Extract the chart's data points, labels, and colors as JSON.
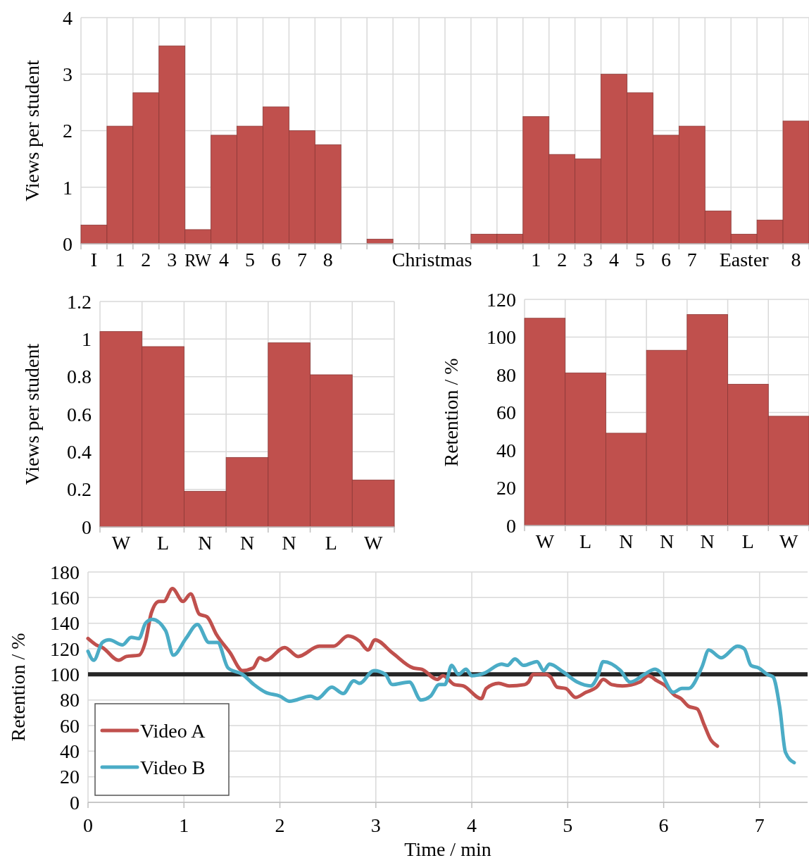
{
  "chart_data": [
    {
      "type": "bar",
      "ylabel": "Views per student",
      "categories": [
        "I",
        "1",
        "2",
        "3",
        "RW",
        "4",
        "5",
        "6",
        "7",
        "8",
        null,
        null,
        null,
        "Christmas",
        null,
        null,
        null,
        "1",
        "2",
        "3",
        "4",
        "5",
        "6",
        "7",
        null,
        "Easter",
        null,
        "8"
      ],
      "values": [
        0.33,
        2.08,
        2.67,
        3.5,
        0.25,
        1.92,
        2.08,
        2.42,
        2.0,
        1.75,
        0,
        0.08,
        0,
        0,
        0,
        0.17,
        0.17,
        2.25,
        1.58,
        1.5,
        3.0,
        2.67,
        1.92,
        2.08,
        0.58,
        0.17,
        0.42,
        2.17
      ],
      "color": "#c0504d",
      "ylim": [
        0,
        4
      ],
      "yticks": [
        0,
        1,
        2,
        3,
        4
      ],
      "grid": true
    },
    {
      "type": "bar",
      "ylabel": "Views per student",
      "categories": [
        "W",
        "L",
        "N",
        "N",
        "N",
        "L",
        "W"
      ],
      "values": [
        1.04,
        0.96,
        0.19,
        0.37,
        0.98,
        0.81,
        0.25
      ],
      "color": "#c0504d",
      "ylim": [
        0,
        1.2
      ],
      "yticks": [
        0,
        0.2,
        0.4,
        0.6,
        0.8,
        1,
        1.2
      ],
      "grid": true
    },
    {
      "type": "bar",
      "ylabel": "Retention / %",
      "categories": [
        "W",
        "L",
        "N",
        "N",
        "N",
        "L",
        "W"
      ],
      "values": [
        110,
        81,
        49,
        93,
        112,
        75,
        58
      ],
      "color": "#c0504d",
      "ylim": [
        0,
        120
      ],
      "yticks": [
        0,
        20,
        40,
        60,
        80,
        100,
        120
      ],
      "grid": true
    },
    {
      "type": "line",
      "xlabel": "Time / min",
      "ylabel": "Retention / %",
      "xlim": [
        0,
        7.5
      ],
      "xticks": [
        0,
        1,
        2,
        3,
        4,
        5,
        6,
        7
      ],
      "ylim": [
        0,
        180
      ],
      "yticks": [
        0,
        20,
        40,
        60,
        80,
        100,
        120,
        140,
        160,
        180
      ],
      "grid": true,
      "legend": "bottom left",
      "ref_lines": [
        {
          "axis": "y",
          "value": 100,
          "color": "#262626"
        }
      ],
      "series": [
        {
          "name": "Video A",
          "color": "#c0504d",
          "x": [
            0,
            0.086,
            0.15,
            0.32,
            0.4,
            0.53,
            0.6,
            0.66,
            0.74,
            0.79,
            0.88,
            0.99,
            1.07,
            1.16,
            1.24,
            1.34,
            1.48,
            1.61,
            1.72,
            1.79,
            1.85,
            2.05,
            2.19,
            2.41,
            2.56,
            2.71,
            2.83,
            2.92,
            2.99,
            3.17,
            3.39,
            3.48,
            3.64,
            3.7,
            3.82,
            3.91,
            4.1,
            4.15,
            4.28,
            4.39,
            4.55,
            4.59,
            4.64,
            4.77,
            4.82,
            4.89,
            4.98,
            5.08,
            5.19,
            5.3,
            5.37,
            5.46,
            5.57,
            5.75,
            5.84,
            5.93,
            6.02,
            6.11,
            6.18,
            6.26,
            6.35,
            6.42,
            6.49,
            6.56
          ],
          "values": [
            128,
            123,
            121,
            111,
            114,
            115,
            126,
            148,
            157,
            157,
            167,
            157,
            163,
            147,
            145,
            131,
            117,
            103,
            105,
            113,
            111,
            121,
            114,
            122,
            122,
            130,
            126,
            119,
            127,
            117,
            105,
            104,
            96,
            99,
            92,
            91,
            81,
            89,
            93,
            91,
            92,
            94,
            100,
            100,
            98,
            90,
            89,
            82,
            86,
            90,
            96,
            92,
            91,
            94,
            99,
            95,
            91,
            84,
            81,
            75,
            73,
            61,
            49,
            44
          ]
        },
        {
          "name": "Video B",
          "color": "#4bacc6",
          "x": [
            0,
            0.06,
            0.15,
            0.22,
            0.36,
            0.45,
            0.53,
            0.6,
            0.67,
            0.81,
            0.89,
            1.02,
            1.14,
            1.26,
            1.35,
            1.46,
            1.61,
            1.73,
            1.85,
            2.0,
            2.1,
            2.32,
            2.39,
            2.54,
            2.66,
            2.77,
            2.83,
            2.98,
            3.1,
            3.17,
            3.35,
            3.47,
            3.57,
            3.66,
            3.72,
            3.79,
            3.86,
            3.94,
            4.0,
            4.13,
            4.31,
            4.37,
            4.45,
            4.54,
            4.68,
            4.75,
            4.81,
            4.95,
            5.1,
            5.24,
            5.31,
            5.37,
            5.55,
            5.65,
            5.8,
            5.91,
            5.96,
            6.1,
            6.19,
            6.26,
            6.4,
            6.47,
            6.6,
            6.77,
            6.84,
            6.91,
            6.99,
            7.08,
            7.14,
            7.21,
            7.27,
            7.36
          ],
          "values": [
            118,
            111,
            125,
            127,
            123,
            129,
            128,
            140,
            143,
            134,
            115,
            128,
            139,
            125,
            125,
            105,
            100,
            92,
            86,
            83,
            79,
            83,
            81,
            90,
            85,
            95,
            93,
            103,
            100,
            92,
            94,
            80,
            83,
            92,
            92,
            107,
            100,
            104,
            99,
            101,
            108,
            107,
            112,
            107,
            110,
            103,
            108,
            102,
            94,
            91,
            98,
            110,
            103,
            94,
            100,
            104,
            102,
            86,
            89,
            89,
            106,
            119,
            113,
            122,
            120,
            107,
            105,
            100,
            98,
            74,
            39,
            31
          ]
        }
      ]
    }
  ]
}
